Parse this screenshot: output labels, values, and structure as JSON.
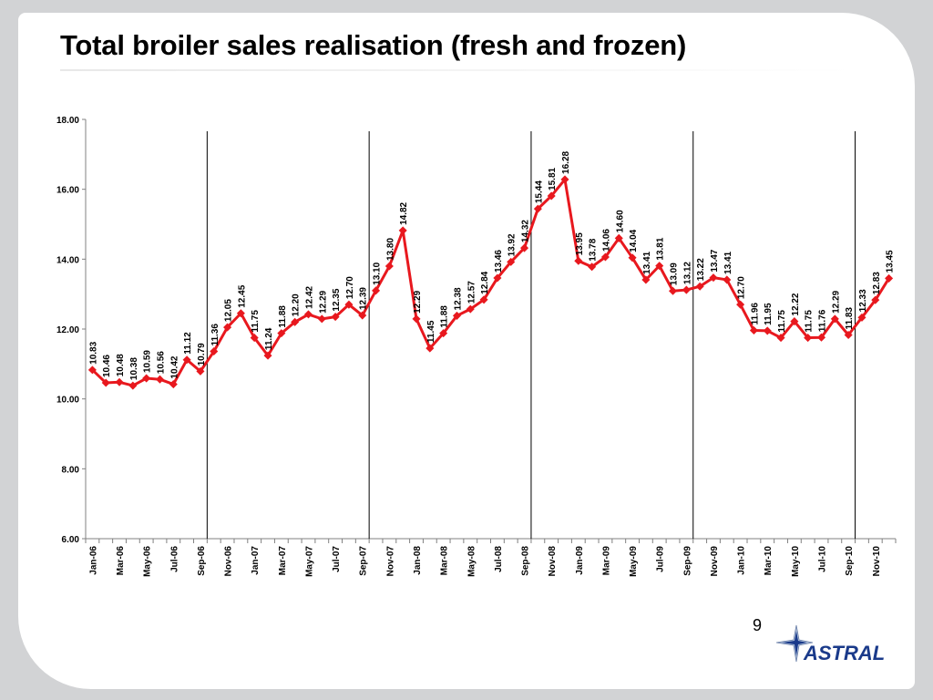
{
  "slide": {
    "title": "Total broiler sales realisation (fresh and frozen)",
    "page_number": "9",
    "logo_text": "ASTRAL"
  },
  "colors": {
    "series": "#e8181e",
    "axis": "#808080",
    "divider": "#000000",
    "background": "#d2d3d5",
    "logo_blue": "#1a3a8a"
  },
  "chart_data": {
    "type": "line",
    "title": "",
    "xlabel": "",
    "ylabel": "",
    "ylim": [
      6.0,
      18.0
    ],
    "y_ticks": [
      "6.00",
      "8.00",
      "10.00",
      "12.00",
      "14.00",
      "16.00",
      "18.00"
    ],
    "grid": false,
    "legend": "none",
    "x": [
      "Jan-06",
      "Feb-06",
      "Mar-06",
      "Apr-06",
      "May-06",
      "Jun-06",
      "Jul-06",
      "Aug-06",
      "Sep-06",
      "Oct-06",
      "Nov-06",
      "Dec-06",
      "Jan-07",
      "Feb-07",
      "Mar-07",
      "Apr-07",
      "May-07",
      "Jun-07",
      "Jul-07",
      "Aug-07",
      "Sep-07",
      "Oct-07",
      "Nov-07",
      "Dec-07",
      "Jan-08",
      "Feb-08",
      "Mar-08",
      "Apr-08",
      "May-08",
      "Jun-08",
      "Jul-08",
      "Aug-08",
      "Sep-08",
      "Oct-08",
      "Nov-08",
      "Dec-08",
      "Jan-09",
      "Feb-09",
      "Mar-09",
      "Apr-09",
      "May-09",
      "Jun-09",
      "Jul-09",
      "Aug-09",
      "Sep-09",
      "Oct-09",
      "Nov-09",
      "Dec-09",
      "Jan-10",
      "Feb-10",
      "Mar-10",
      "Apr-10",
      "May-10",
      "Jun-10",
      "Jul-10",
      "Aug-10",
      "Sep-10",
      "Oct-10",
      "Nov-10",
      "Dec-10"
    ],
    "x_tick_labels": [
      "Jan-06",
      "Mar-06",
      "May-06",
      "Jul-06",
      "Sep-06",
      "Nov-06",
      "Jan-07",
      "Mar-07",
      "May-07",
      "Jul-07",
      "Sep-07",
      "Nov-07",
      "Jan-08",
      "Mar-08",
      "May-08",
      "Jul-08",
      "Sep-08",
      "Nov-08",
      "Jan-09",
      "Mar-09",
      "May-09",
      "Jul-09",
      "Sep-09",
      "Nov-09",
      "Jan-10",
      "Mar-10",
      "May-10",
      "Jul-10",
      "Sep-10",
      "Nov-10"
    ],
    "series": [
      {
        "values": [
          10.83,
          10.46,
          10.48,
          10.38,
          10.59,
          10.56,
          10.42,
          11.12,
          10.79,
          11.36,
          12.05,
          12.45,
          11.75,
          11.24,
          11.88,
          12.2,
          12.42,
          12.29,
          12.35,
          12.7,
          12.39,
          13.1,
          13.8,
          14.82,
          12.29,
          11.45,
          11.88,
          12.38,
          12.57,
          12.84,
          13.46,
          13.92,
          14.32,
          15.44,
          15.81,
          16.28,
          13.95,
          13.78,
          14.06,
          14.6,
          14.04,
          13.41,
          13.81,
          13.09,
          13.12,
          13.22,
          13.47,
          13.41,
          12.7,
          11.96,
          11.95,
          11.75,
          12.22,
          11.75,
          11.76,
          12.29,
          11.83,
          12.33,
          12.83,
          13.45
        ],
        "labels": [
          "10.83",
          "10.46",
          "10.48",
          "10.38",
          "10.59",
          "10.56",
          "10.42",
          "11.12",
          "10.79",
          "11.36",
          "12.05",
          "12.45",
          "11.75",
          "11.24",
          "11.88",
          "12.20",
          "12.42",
          "12.29",
          "12.35",
          "12.70",
          "12.39",
          "13.10",
          "13.80",
          "14.82",
          "12.29",
          "11.45",
          "11.88",
          "12.38",
          "12.57",
          "12.84",
          "13.46",
          "13.92",
          "14.32",
          "15.44",
          "15.81",
          "16.28",
          "13.95",
          "13.78",
          "14.06",
          "14.60",
          "14.04",
          "13.41",
          "13.81",
          "13.09",
          "13.12",
          "13.22",
          "13.47",
          "13.41",
          "12.70",
          "11.96",
          "11.95",
          "11.75",
          "12.22",
          "11.75",
          "11.76",
          "12.29",
          "11.83",
          "12.33",
          "12.83",
          "13.45"
        ]
      }
    ],
    "vertical_markers_at": [
      "Sep-06",
      "Sep-07",
      "Sep-08",
      "Sep-09",
      "Sep-10"
    ]
  }
}
